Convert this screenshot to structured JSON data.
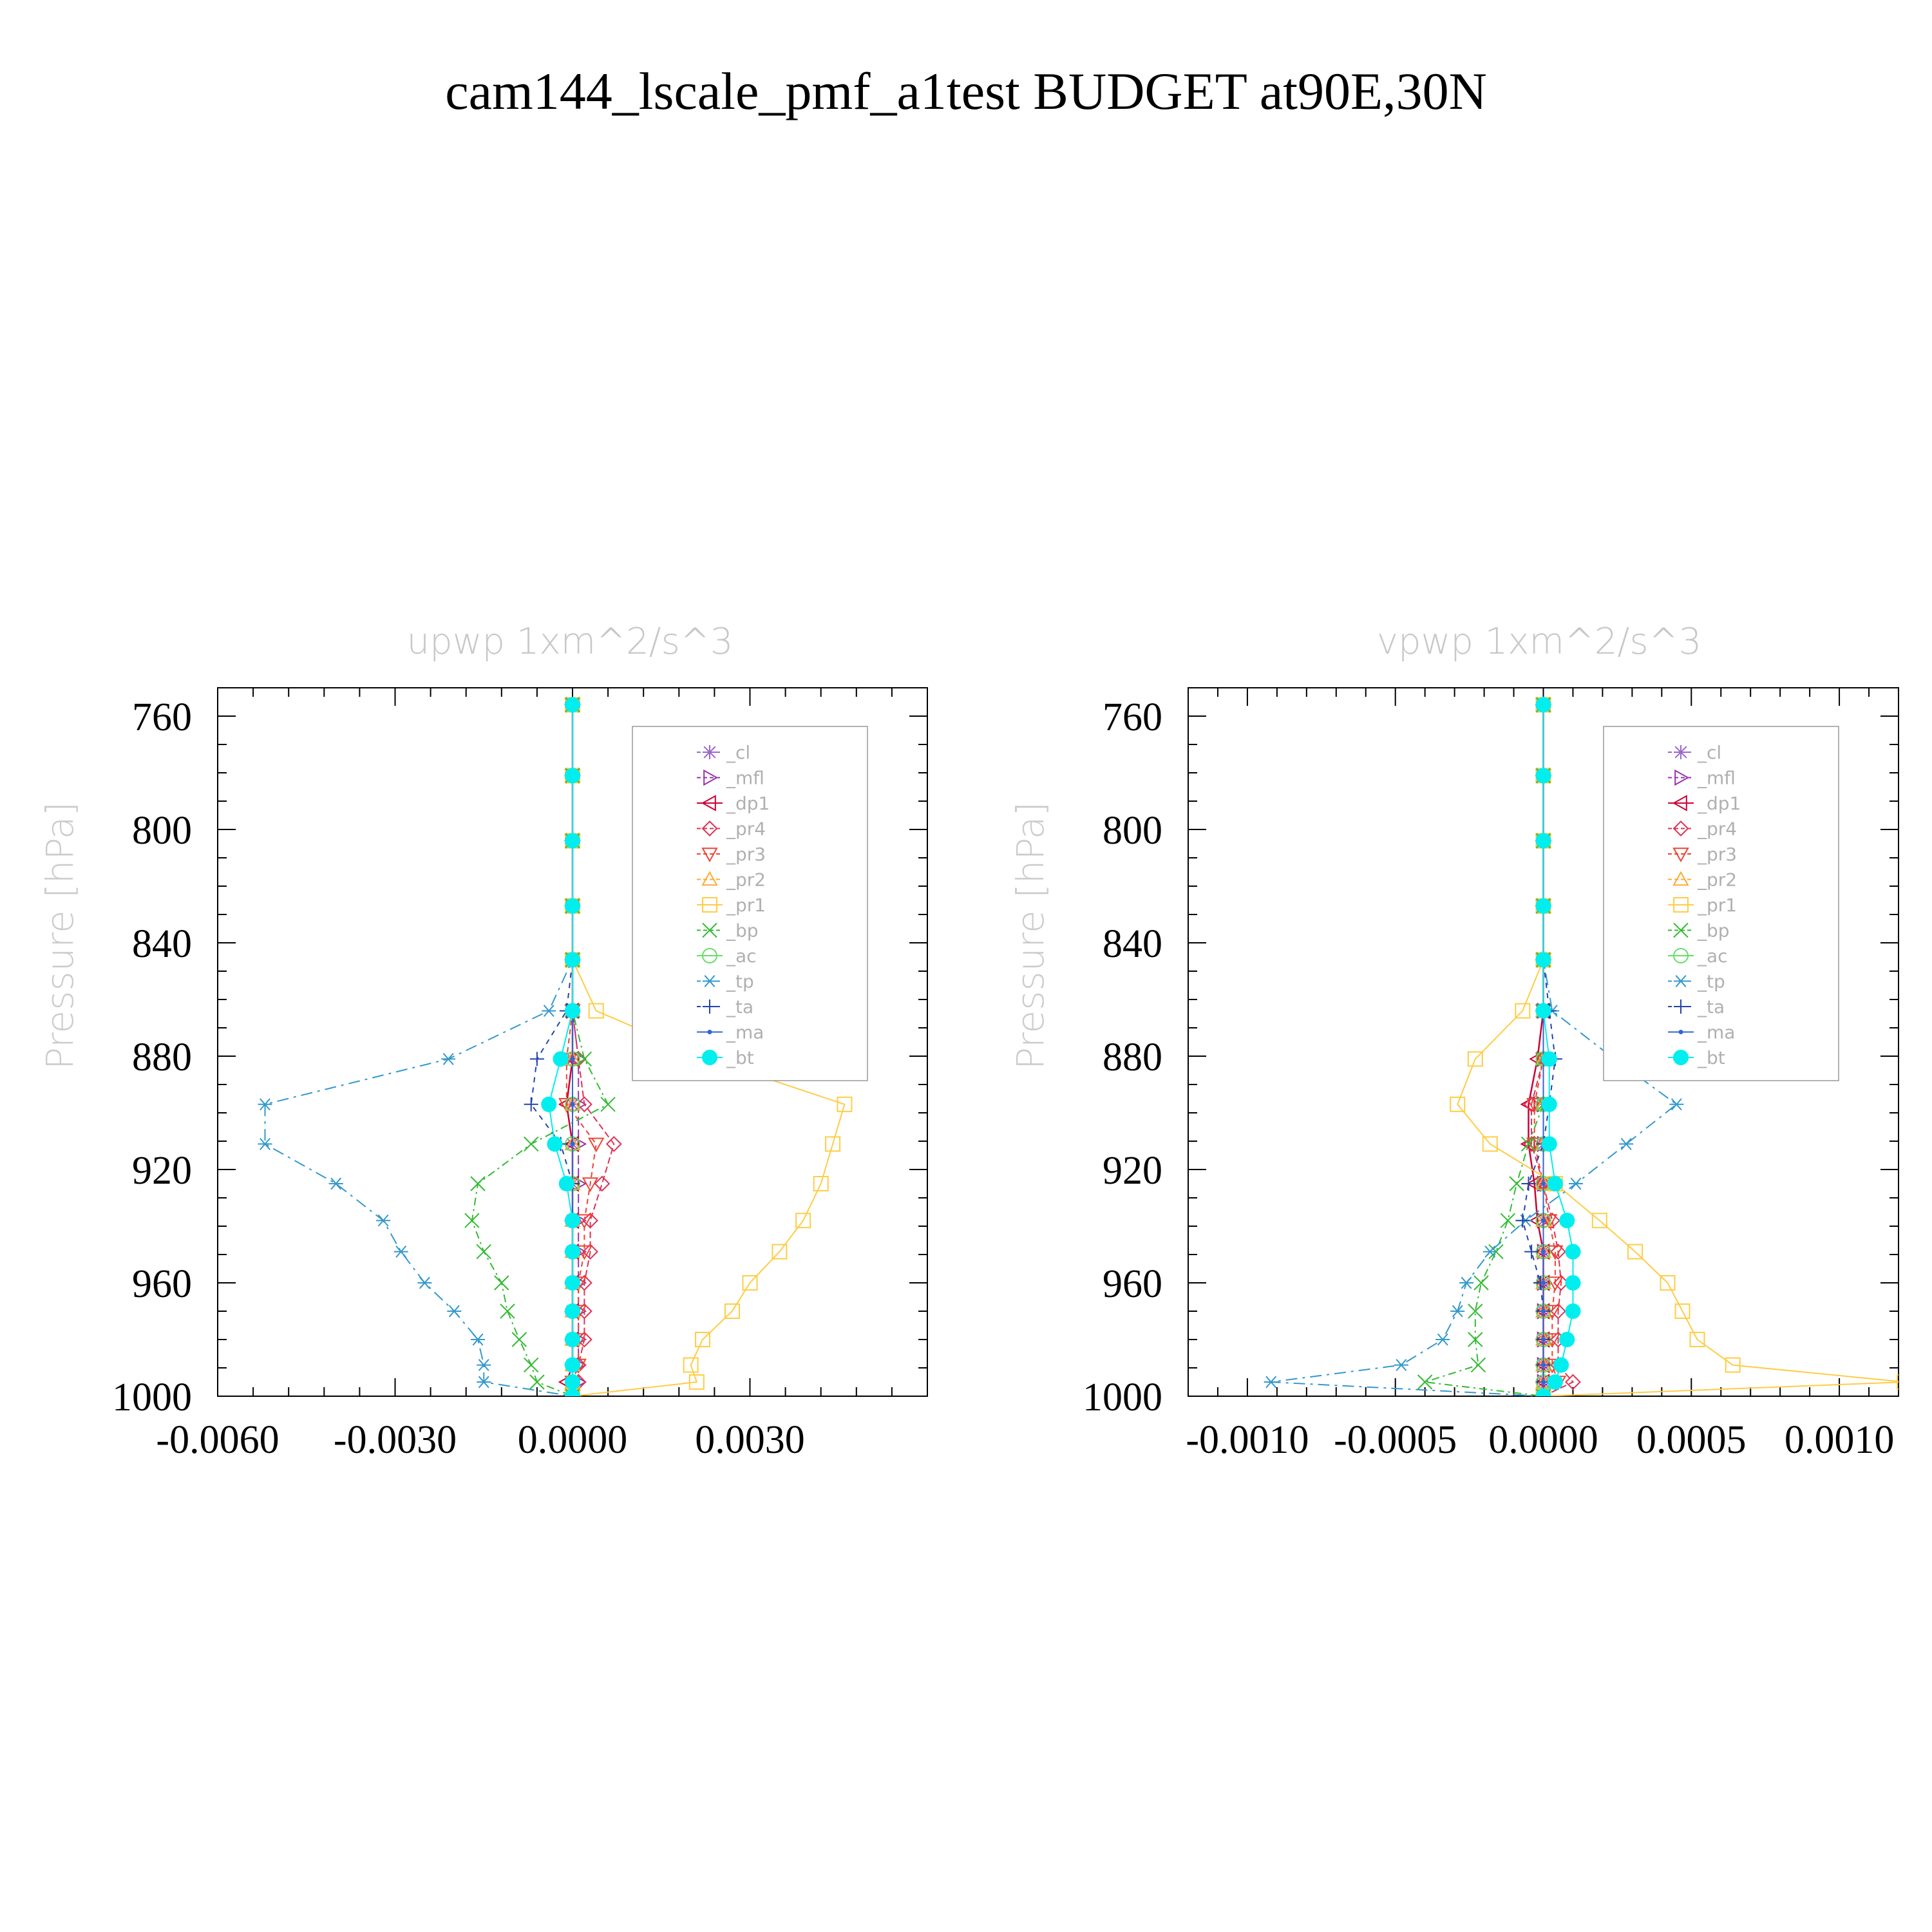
{
  "title": "cam144_lscale_pmf_a1test  BUDGET at90E,30N",
  "colors": {
    "cl": "#9966cc",
    "mfl": "#9933aa",
    "dp1": "#cc0033",
    "pr4": "#dd3355",
    "pr3": "#ee4433",
    "pr2": "#ffaa33",
    "pr1": "#ffcc44",
    "bp": "#33bb33",
    "ac": "#66dd66",
    "tp": "#3399cc",
    "ta": "#2244aa",
    "ma": "#3366cc",
    "bt": "#00eeee"
  },
  "chart_data": [
    {
      "type": "line",
      "title": "upwp   1xm^2/s^3",
      "ylabel": "Pressure [hPa]",
      "xlim": [
        -0.006,
        0.006
      ],
      "ylim": [
        1000,
        750
      ],
      "xticks": [
        -0.006,
        -0.003,
        0.0,
        0.003
      ],
      "xtick_labels": [
        "-0.0060",
        "-0.0030",
        "0.0000",
        "0.0030"
      ],
      "yticks": [
        760,
        800,
        840,
        880,
        920,
        960,
        1000
      ],
      "ytick_labels": [
        "760",
        "800",
        "840",
        "880",
        "920",
        "960",
        "1000"
      ],
      "legend": [
        "_cl",
        "_mfl",
        "_dp1",
        "_pr4",
        "_pr3",
        "_pr2",
        "_pr1",
        "_bp",
        "_ac",
        "_tp",
        "_ta",
        "_ma",
        "_bt"
      ],
      "legend_position": "top-right",
      "y": [
        756,
        781,
        804,
        827,
        846,
        864,
        881,
        897,
        911,
        925,
        938,
        949,
        960,
        970,
        980,
        989,
        995,
        1000
      ],
      "series": [
        {
          "name": "_cl",
          "key": "cl",
          "x": [
            0,
            0,
            0,
            0,
            0,
            0,
            0,
            0,
            0,
            0,
            0,
            0,
            0,
            0,
            0,
            0,
            0,
            0
          ]
        },
        {
          "name": "_mfl",
          "key": "mfl",
          "x": [
            0,
            0,
            0,
            0,
            0,
            0,
            0.0001,
            0.0001,
            0.0001,
            0.0001,
            0.0001,
            0.0001,
            0.0001,
            0.0001,
            0.0001,
            0.0001,
            0.0001,
            0
          ]
        },
        {
          "name": "_dp1",
          "key": "dp1",
          "x": [
            0,
            0,
            0,
            0,
            0,
            0,
            0,
            -0.0001,
            0,
            0,
            0,
            0,
            0,
            0,
            0,
            0,
            -0.0001,
            0
          ]
        },
        {
          "name": "_pr4",
          "key": "pr4",
          "x": [
            0,
            0,
            0,
            0,
            0,
            0,
            0.0001,
            0.0002,
            0.0007,
            0.0005,
            0.0003,
            0.0003,
            0.0002,
            0.0002,
            0.0002,
            0.0001,
            0.0001,
            0
          ]
        },
        {
          "name": "_pr3",
          "key": "pr3",
          "x": [
            0,
            0,
            0,
            0,
            0,
            0,
            -0.0001,
            -0.0001,
            0.0004,
            0.0003,
            0.0002,
            0.0002,
            0.0001,
            0.0001,
            0.0001,
            0.0001,
            0,
            0
          ]
        },
        {
          "name": "_pr2",
          "key": "pr2",
          "x": [
            0,
            0,
            0,
            0,
            0,
            0,
            0,
            0,
            0,
            0,
            0,
            0,
            0,
            0,
            0,
            0,
            0,
            0
          ]
        },
        {
          "name": "_pr1",
          "key": "pr1",
          "x": [
            0,
            0,
            0,
            0,
            0,
            0.0004,
            0.0023,
            0.0046,
            0.0044,
            0.0042,
            0.0039,
            0.0035,
            0.003,
            0.0027,
            0.0022,
            0.002,
            0.0021,
            0
          ]
        },
        {
          "name": "_bp",
          "key": "bp",
          "x": [
            0,
            0,
            0,
            0,
            0,
            0,
            0.0002,
            0.0006,
            -0.0007,
            -0.0016,
            -0.0017,
            -0.0015,
            -0.0012,
            -0.0011,
            -0.0009,
            -0.0007,
            -0.0006,
            0
          ]
        },
        {
          "name": "_ac",
          "key": "ac",
          "x": [
            0,
            0,
            0,
            0,
            0,
            0,
            0,
            0,
            0,
            0,
            0,
            0,
            0,
            0,
            0,
            0,
            0,
            0
          ]
        },
        {
          "name": "_tp",
          "key": "tp",
          "x": [
            0,
            0,
            0,
            0,
            0,
            -0.0004,
            -0.0021,
            -0.0052,
            -0.0052,
            -0.004,
            -0.0032,
            -0.0029,
            -0.0025,
            -0.002,
            -0.0016,
            -0.0015,
            -0.0015,
            0
          ]
        },
        {
          "name": "_ta",
          "key": "ta",
          "x": [
            0,
            0,
            0,
            0,
            0,
            -0.0001,
            -0.0006,
            -0.0007,
            -0.0002,
            0,
            0,
            0,
            0,
            0,
            0,
            0,
            0,
            0
          ]
        },
        {
          "name": "_ma",
          "key": "ma",
          "x": [
            0,
            0,
            0,
            0,
            0,
            0,
            0,
            0,
            0,
            0,
            0,
            0,
            0,
            0,
            0,
            0,
            0,
            0
          ]
        },
        {
          "name": "_bt",
          "key": "bt",
          "x": [
            0,
            0,
            0,
            0,
            0,
            0,
            -0.0002,
            -0.0004,
            -0.0003,
            -0.0001,
            0,
            0,
            0,
            0,
            0,
            0,
            0,
            0
          ]
        }
      ]
    },
    {
      "type": "line",
      "title": "vpwp   1xm^2/s^3",
      "ylabel": "Pressure [hPa]",
      "xlim": [
        -0.0012,
        0.0012
      ],
      "ylim": [
        1000,
        750
      ],
      "xticks": [
        -0.001,
        -0.0005,
        0.0,
        0.0005,
        0.001
      ],
      "xtick_labels": [
        "-0.0010",
        "-0.0005",
        "0.0000",
        "0.0005",
        "0.0010"
      ],
      "yticks": [
        760,
        800,
        840,
        880,
        920,
        960,
        1000
      ],
      "ytick_labels": [
        "760",
        "800",
        "840",
        "880",
        "920",
        "960",
        "1000"
      ],
      "legend": [
        "_cl",
        "_mfl",
        "_dp1",
        "_pr4",
        "_pr3",
        "_pr2",
        "_pr1",
        "_bp",
        "_ac",
        "_tp",
        "_ta",
        "_ma",
        "_bt"
      ],
      "legend_position": "top-right",
      "y": [
        756,
        781,
        804,
        827,
        846,
        864,
        881,
        897,
        911,
        925,
        938,
        949,
        960,
        970,
        980,
        989,
        995,
        1000
      ],
      "series": [
        {
          "name": "_cl",
          "key": "cl",
          "x": [
            0,
            0,
            0,
            0,
            0,
            0,
            0,
            0,
            0,
            0,
            0,
            0,
            0,
            0,
            0,
            0,
            0,
            0
          ]
        },
        {
          "name": "_mfl",
          "key": "mfl",
          "x": [
            0,
            0,
            0,
            0,
            0,
            0,
            0,
            0,
            0,
            0,
            0,
            0,
            0,
            0,
            0,
            0,
            0,
            0
          ]
        },
        {
          "name": "_dp1",
          "key": "dp1",
          "x": [
            0,
            0,
            0,
            0,
            0,
            0,
            -2e-05,
            -5e-05,
            -5e-05,
            -3e-05,
            -2e-05,
            0,
            0,
            0,
            0,
            0,
            0,
            0
          ]
        },
        {
          "name": "_pr4",
          "key": "pr4",
          "x": [
            0,
            0,
            0,
            0,
            0,
            0,
            0,
            -4e-05,
            -4e-05,
            0,
            3e-05,
            5e-05,
            6e-05,
            5e-05,
            5e-05,
            5e-05,
            0.0001,
            0
          ]
        },
        {
          "name": "_pr3",
          "key": "pr3",
          "x": [
            0,
            0,
            0,
            0,
            0,
            0,
            0,
            -3e-05,
            -3e-05,
            0,
            2e-05,
            4e-05,
            4e-05,
            3e-05,
            3e-05,
            3e-05,
            5e-05,
            0
          ]
        },
        {
          "name": "_pr2",
          "key": "pr2",
          "x": [
            0,
            0,
            0,
            0,
            0,
            0,
            0,
            0,
            0,
            0,
            0,
            0,
            0,
            0,
            0,
            0,
            0,
            0
          ]
        },
        {
          "name": "_pr1",
          "key": "pr1",
          "x": [
            0,
            0,
            0,
            0,
            0,
            -7e-05,
            -0.00023,
            -0.00029,
            -0.00018,
            4e-05,
            0.00019,
            0.00031,
            0.00042,
            0.00047,
            0.00052,
            0.00064,
            0.00122,
            0
          ]
        },
        {
          "name": "_bp",
          "key": "bp",
          "x": [
            0,
            0,
            0,
            0,
            0,
            0,
            0,
            0,
            -5e-05,
            -9e-05,
            -0.00012,
            -0.00016,
            -0.00021,
            -0.00023,
            -0.00023,
            -0.00022,
            -0.0004,
            0
          ]
        },
        {
          "name": "_ac",
          "key": "ac",
          "x": [
            0,
            0,
            0,
            0,
            0,
            0,
            0,
            0,
            0,
            0,
            0,
            0,
            0,
            0,
            0,
            0,
            0,
            0
          ]
        },
        {
          "name": "_tp",
          "key": "tp",
          "x": [
            0,
            0,
            0,
            0,
            0,
            3e-05,
            0.00024,
            0.00045,
            0.00028,
            0.00011,
            -6e-05,
            -0.00018,
            -0.00026,
            -0.00029,
            -0.00034,
            -0.00048,
            -0.00092,
            0
          ]
        },
        {
          "name": "_ta",
          "key": "ta",
          "x": [
            0,
            0,
            0,
            0,
            0,
            2e-05,
            4e-05,
            2e-05,
            0,
            -5e-05,
            -7e-05,
            -4e-05,
            -1e-05,
            0,
            0,
            0,
            0,
            0
          ]
        },
        {
          "name": "_ma",
          "key": "ma",
          "x": [
            0,
            0,
            0,
            0,
            0,
            0,
            0,
            0,
            0,
            0,
            0,
            0,
            0,
            0,
            0,
            0,
            0,
            0
          ]
        },
        {
          "name": "_bt",
          "key": "bt",
          "x": [
            0,
            0,
            0,
            0,
            0,
            0,
            2e-05,
            2e-05,
            2e-05,
            4e-05,
            8e-05,
            0.0001,
            0.0001,
            0.0001,
            8e-05,
            6e-05,
            4e-05,
            0
          ]
        }
      ]
    }
  ]
}
